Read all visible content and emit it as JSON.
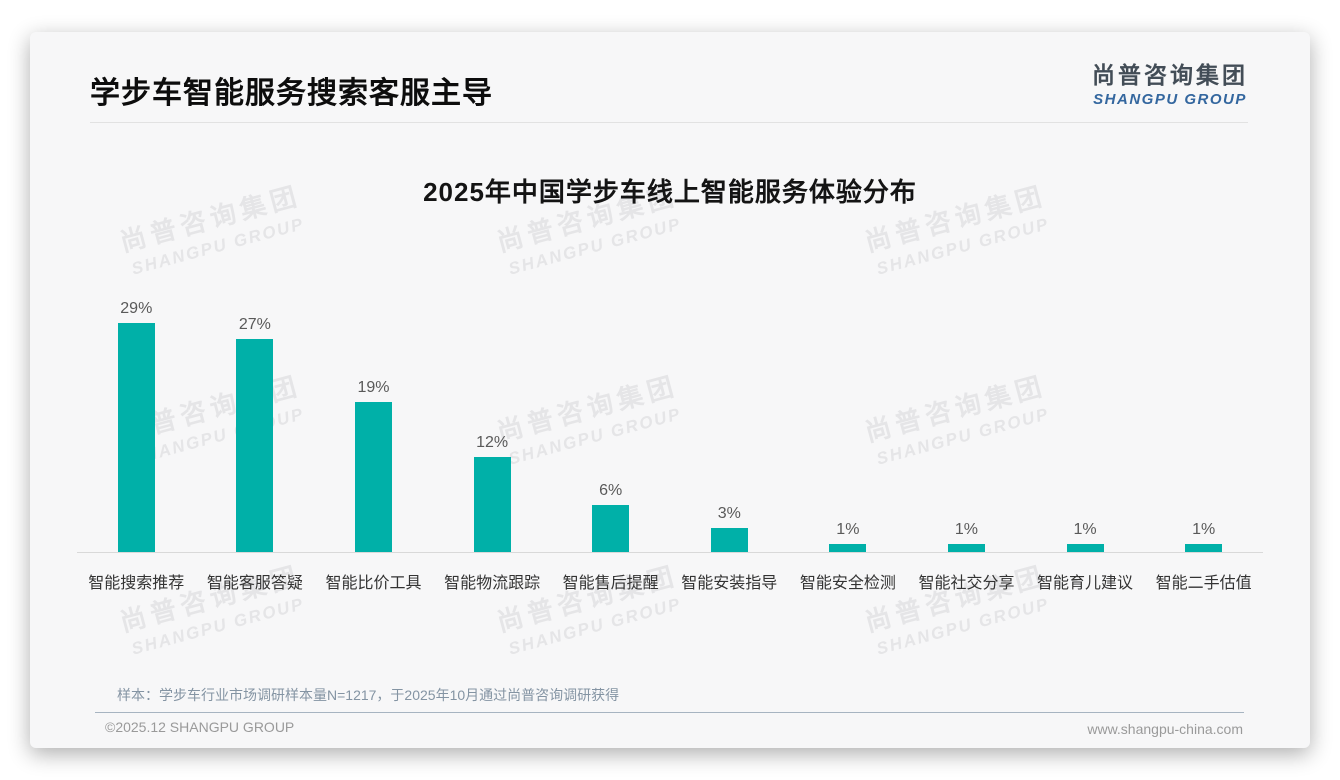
{
  "page": {
    "title": "学步车智能服务搜索客服主导",
    "logo": {
      "cn": "尚普咨询集团",
      "en": "SHANGPU GROUP",
      "cn_color": "#434d57",
      "en_color": "#34679f"
    },
    "watermark": {
      "line1": "尚普咨询集团",
      "line2": "SHANGPU GROUP"
    },
    "note": "样本：学步车行业市场调研样本量N=1217，于2025年10月通过尚普咨询调研获得",
    "footer": {
      "copyright": "©2025.12 SHANGPU GROUP",
      "website": "www.shangpu-china.com"
    }
  },
  "chart_data": {
    "type": "bar",
    "title": "2025年中国学步车线上智能服务体验分布",
    "categories": [
      "智能搜索推荐",
      "智能客服答疑",
      "智能比价工具",
      "智能物流跟踪",
      "智能售后提醒",
      "智能安装指导",
      "智能安全检测",
      "智能社交分享",
      "智能育儿建议",
      "智能二手估值"
    ],
    "values": [
      29,
      27,
      19,
      12,
      6,
      3,
      1,
      1,
      1,
      1
    ],
    "unit": "%",
    "bar_color": "#00b0a8",
    "xlabel": "",
    "ylabel": "",
    "ylim": [
      0,
      31
    ],
    "grid": false,
    "legend": false,
    "value_labels_position": "above bars",
    "baseline_color": "#d9d9d9"
  }
}
